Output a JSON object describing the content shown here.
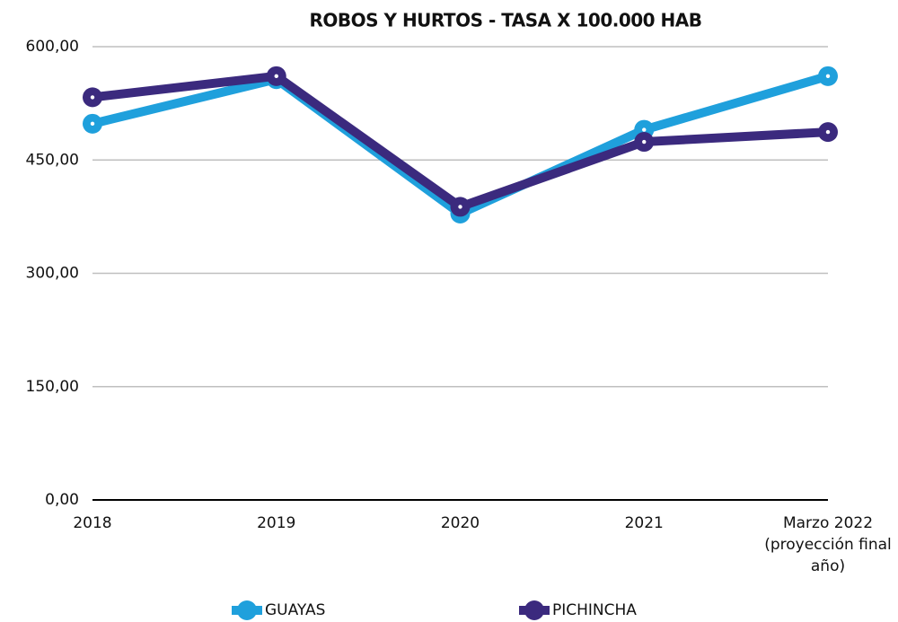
{
  "chart_data": {
    "type": "line",
    "title": "ROBOS Y HURTOS - TASA X 100.000 HAB",
    "categories": [
      "2018",
      "2019",
      "2020",
      "2021",
      "Marzo 2022\n(proyección final\naño)"
    ],
    "series": [
      {
        "name": "GUAYAS",
        "color": "#1fa0dc",
        "values": [
          498,
          557,
          379,
          490,
          561
        ]
      },
      {
        "name": "PICHINCHA",
        "color": "#3b2a7e",
        "values": [
          533,
          561,
          388,
          474,
          487
        ]
      }
    ],
    "ylim": [
      0,
      600
    ],
    "yticks": [
      {
        "value": 0,
        "label": "0,00"
      },
      {
        "value": 150,
        "label": "150,00"
      },
      {
        "value": 300,
        "label": "300,00"
      },
      {
        "value": 450,
        "label": "450,00"
      },
      {
        "value": 600,
        "label": "600,00"
      }
    ],
    "grid": true,
    "legend": "bottom"
  }
}
